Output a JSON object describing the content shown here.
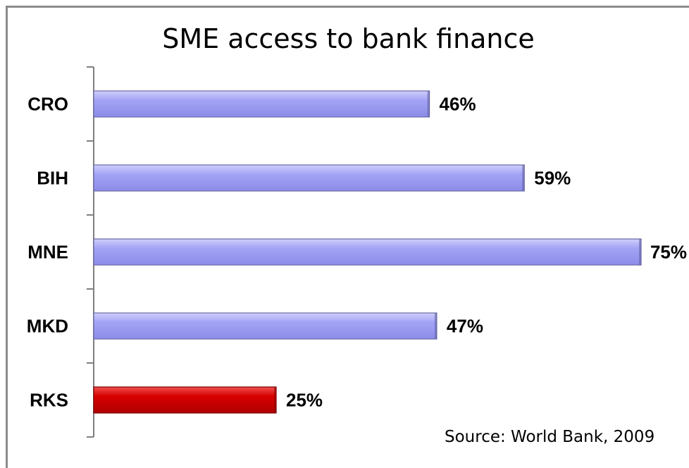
{
  "chart_data": {
    "type": "bar",
    "orientation": "horizontal",
    "title": "SME access to bank finance",
    "categories": [
      "CRO",
      "BIH",
      "MNE",
      "MKD",
      "RKS"
    ],
    "values": [
      46,
      59,
      75,
      47,
      25
    ],
    "value_labels": [
      "46%",
      "59%",
      "75%",
      "47%",
      "25%"
    ],
    "xlim": [
      0,
      75
    ],
    "grid": false,
    "legend": "none",
    "bar_colors": [
      "#a0a0f5",
      "#a0a0f5",
      "#a0a0f5",
      "#a0a0f5",
      "#d40000"
    ],
    "source": "Source: World Bank, 2009"
  }
}
